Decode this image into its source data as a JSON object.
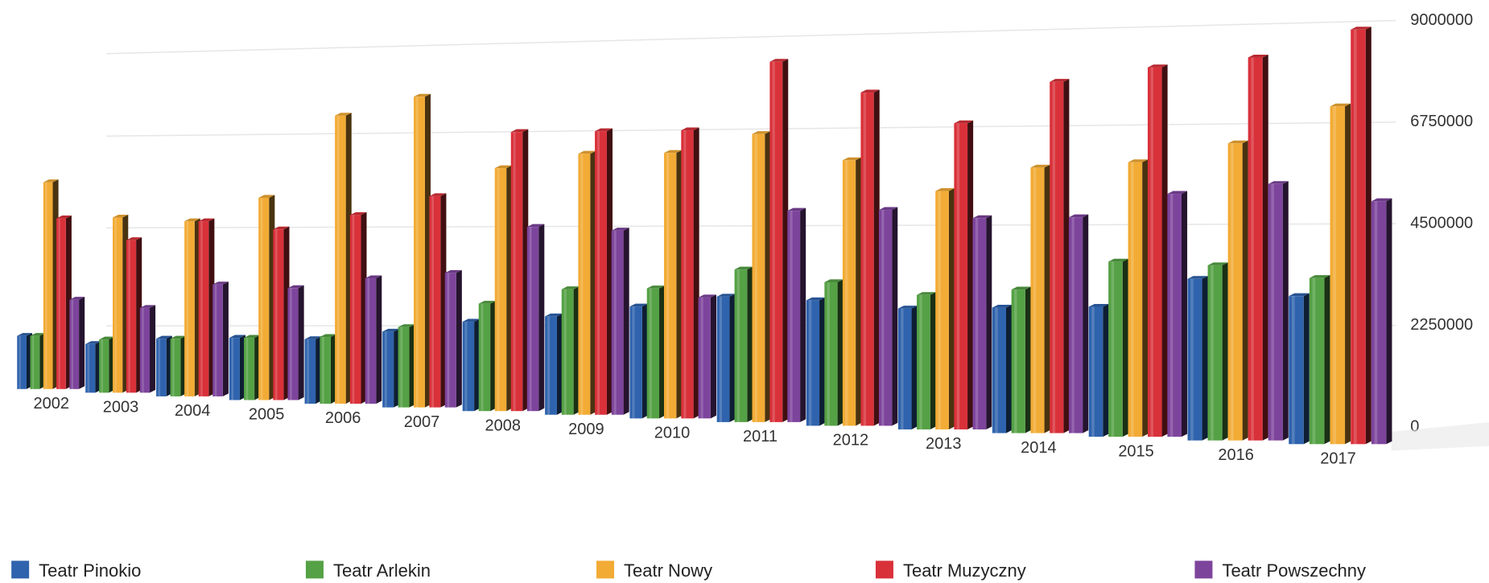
{
  "chart_data": {
    "type": "bar3d",
    "categories": [
      "2002",
      "2003",
      "2004",
      "2005",
      "2006",
      "2007",
      "2008",
      "2009",
      "2010",
      "2011",
      "2012",
      "2013",
      "2014",
      "2015",
      "2016",
      "2017"
    ],
    "series": [
      {
        "name": "Teatr Pinokio",
        "color": "#2f63ad",
        "values": [
          800000,
          700000,
          900000,
          1000000,
          1050000,
          1300000,
          1600000,
          1800000,
          2100000,
          2400000,
          2400000,
          2300000,
          2400000,
          2500000,
          3200000,
          2900000
        ]
      },
      {
        "name": "Teatr Arlekin",
        "color": "#55a145",
        "values": [
          800000,
          800000,
          900000,
          1000000,
          1100000,
          1400000,
          2000000,
          2400000,
          2500000,
          3000000,
          2800000,
          2600000,
          2800000,
          3500000,
          3500000,
          3300000
        ]
      },
      {
        "name": "Teatr Nowy",
        "color": "#f2ab35",
        "values": [
          4200000,
          3500000,
          3500000,
          4100000,
          6000000,
          6500000,
          5000000,
          5400000,
          5500000,
          6000000,
          5500000,
          4900000,
          5500000,
          5700000,
          6200000,
          7100000
        ]
      },
      {
        "name": "Teatr Muzyczny",
        "color": "#d9313a",
        "values": [
          3400000,
          3000000,
          3500000,
          3400000,
          3800000,
          4300000,
          5800000,
          5900000,
          6000000,
          7600000,
          7000000,
          6400000,
          7400000,
          7800000,
          8100000,
          8800000
        ]
      },
      {
        "name": "Teatr Powszechny",
        "color": "#7d449c",
        "values": [
          1600000,
          1500000,
          2100000,
          2100000,
          2400000,
          2600000,
          3700000,
          3700000,
          2300000,
          4300000,
          4400000,
          4300000,
          4400000,
          5000000,
          5300000,
          5000000
        ]
      }
    ],
    "ylim": [
      0,
      9000000
    ],
    "yticks": [
      0,
      2250000,
      4500000,
      6750000,
      9000000
    ],
    "grid": true,
    "legend": "bottom"
  }
}
